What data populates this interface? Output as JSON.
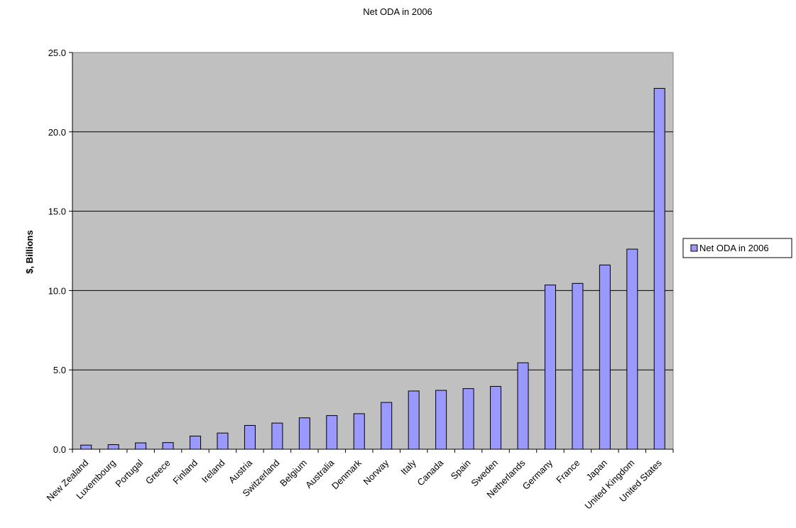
{
  "chart_data": {
    "type": "bar",
    "title": "Net ODA in 2006",
    "xlabel": "",
    "ylabel": "$, Billions",
    "ylim": [
      0,
      25
    ],
    "yticks": [
      "0.0",
      "5.0",
      "10.0",
      "15.0",
      "20.0",
      "25.0"
    ],
    "grid": "horizontal",
    "legend_position": "right",
    "plot_background": "#c0c0c0",
    "bar_color": "#9999ff",
    "categories": [
      "New Zealand",
      "Luxembourg",
      "Portugal",
      "Greece",
      "Finland",
      "Ireland",
      "Austria",
      "Switzerland",
      "Belgium",
      "Australia",
      "Denmark",
      "Norway",
      "Italy",
      "Canada",
      "Spain",
      "Sweden",
      "Netherlands",
      "Germany",
      "France",
      "Japan",
      "United Kingdom",
      "United States"
    ],
    "series": [
      {
        "name": "Net ODA in 2006",
        "values": [
          0.26,
          0.29,
          0.4,
          0.42,
          0.83,
          1.02,
          1.5,
          1.65,
          1.98,
          2.12,
          2.24,
          2.95,
          3.67,
          3.71,
          3.82,
          3.96,
          5.45,
          10.35,
          10.45,
          11.61,
          12.61,
          22.74
        ]
      }
    ]
  }
}
